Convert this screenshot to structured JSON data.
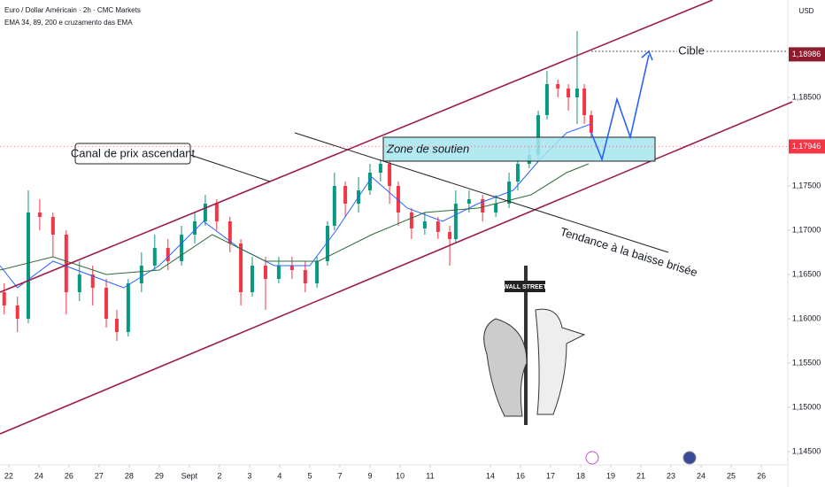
{
  "header": {
    "title": "Euro / Dollar Américain · 2h · CMC Markets",
    "indicator": "EMA 34, 89, 200 e cruzamento das EMA",
    "currency": "USD"
  },
  "chart_data": {
    "type": "candlestick",
    "xlim": [
      -0.29,
      25.88
    ],
    "ylim": [
      1.1435,
      1.196
    ],
    "xticks": [
      {
        "value": 0,
        "label": "22"
      },
      {
        "value": 1,
        "label": "24"
      },
      {
        "value": 2,
        "label": "26"
      },
      {
        "value": 3,
        "label": "27"
      },
      {
        "value": 4,
        "label": "28"
      },
      {
        "value": 5,
        "label": "29"
      },
      {
        "value": 6,
        "label": "Sept"
      },
      {
        "value": 7,
        "label": "2"
      },
      {
        "value": 8,
        "label": "3"
      },
      {
        "value": 9,
        "label": "4"
      },
      {
        "value": 10,
        "label": "5"
      },
      {
        "value": 11,
        "label": "7"
      },
      {
        "value": 12,
        "label": "9"
      },
      {
        "value": 13,
        "label": "10"
      },
      {
        "value": 14,
        "label": "11"
      },
      {
        "value": 16,
        "label": "14"
      },
      {
        "value": 17,
        "label": "16"
      },
      {
        "value": 18,
        "label": "17"
      },
      {
        "value": 19,
        "label": "18"
      },
      {
        "value": 20,
        "label": "19"
      },
      {
        "value": 21,
        "label": "21"
      },
      {
        "value": 22,
        "label": "23"
      },
      {
        "value": 23,
        "label": "24"
      },
      {
        "value": 24,
        "label": "25"
      },
      {
        "value": 25,
        "label": "26"
      }
    ],
    "yticks": [
      {
        "value": 1.145,
        "label": "1,14500"
      },
      {
        "value": 1.15,
        "label": "1,15000"
      },
      {
        "value": 1.155,
        "label": "1,15500"
      },
      {
        "value": 1.16,
        "label": "1,16000"
      },
      {
        "value": 1.165,
        "label": "1,16500"
      },
      {
        "value": 1.17,
        "label": "1,17000"
      },
      {
        "value": 1.175,
        "label": "1,17500"
      },
      {
        "value": 1.185,
        "label": "1,18500"
      }
    ],
    "up_color": "#089981",
    "down_color": "#f23645",
    "candles": {
      "x": [
        -0.15,
        0.29,
        0.65,
        1.03,
        1.47,
        1.91,
        2.35,
        2.79,
        3.24,
        3.59,
        3.97,
        4.41,
        4.85,
        5.29,
        5.74,
        6.18,
        6.53,
        6.91,
        7.35,
        7.71,
        8.09,
        8.53,
        8.97,
        9.41,
        9.85,
        10.24,
        10.59,
        10.82,
        11.18,
        11.62,
        12.0,
        12.35,
        12.65,
        12.94,
        13.38,
        13.82,
        14.26,
        14.65,
        14.85,
        15.29,
        15.74,
        16.18,
        16.62,
        16.91,
        17.29,
        17.59,
        17.88,
        18.24,
        18.59,
        18.88,
        19.12,
        19.35
      ],
      "open": [
        1.163,
        1.1615,
        1.16,
        1.172,
        1.1715,
        1.1695,
        1.163,
        1.165,
        1.1635,
        1.16,
        1.1585,
        1.164,
        1.166,
        1.168,
        1.1665,
        1.1695,
        1.171,
        1.173,
        1.171,
        1.1685,
        1.163,
        1.166,
        1.1645,
        1.166,
        1.1655,
        1.164,
        1.1665,
        1.1705,
        1.175,
        1.173,
        1.1745,
        1.1765,
        1.1775,
        1.175,
        1.172,
        1.1702,
        1.171,
        1.1698,
        1.169,
        1.173,
        1.1735,
        1.172,
        1.173,
        1.1755,
        1.1775,
        1.1785,
        1.183,
        1.1865,
        1.186,
        1.185,
        1.186,
        1.183
      ],
      "high": [
        1.164,
        1.1625,
        1.1745,
        1.1735,
        1.172,
        1.17,
        1.1665,
        1.166,
        1.1645,
        1.161,
        1.1645,
        1.1675,
        1.1695,
        1.169,
        1.1705,
        1.172,
        1.174,
        1.1735,
        1.1715,
        1.169,
        1.167,
        1.167,
        1.167,
        1.167,
        1.1665,
        1.167,
        1.171,
        1.1765,
        1.1755,
        1.176,
        1.1775,
        1.178,
        1.178,
        1.1755,
        1.1725,
        1.172,
        1.1715,
        1.1705,
        1.1745,
        1.1745,
        1.174,
        1.174,
        1.1765,
        1.178,
        1.1795,
        1.1835,
        1.188,
        1.187,
        1.1865,
        1.1925,
        1.1865,
        1.1835
      ],
      "low": [
        1.1605,
        1.1585,
        1.1595,
        1.17,
        1.167,
        1.1605,
        1.162,
        1.1615,
        1.159,
        1.1575,
        1.158,
        1.163,
        1.1655,
        1.1655,
        1.166,
        1.1685,
        1.1705,
        1.17,
        1.1675,
        1.1615,
        1.1625,
        1.161,
        1.164,
        1.1645,
        1.163,
        1.1635,
        1.166,
        1.17,
        1.1715,
        1.172,
        1.174,
        1.1755,
        1.173,
        1.1705,
        1.169,
        1.1695,
        1.169,
        1.166,
        1.1685,
        1.172,
        1.171,
        1.1715,
        1.1725,
        1.1745,
        1.177,
        1.178,
        1.1825,
        1.185,
        1.1835,
        1.182,
        1.182,
        1.1802
      ],
      "close": [
        1.1615,
        1.16,
        1.172,
        1.1715,
        1.1695,
        1.163,
        1.165,
        1.1635,
        1.16,
        1.1585,
        1.164,
        1.166,
        1.168,
        1.1665,
        1.1695,
        1.171,
        1.173,
        1.171,
        1.1685,
        1.163,
        1.166,
        1.1645,
        1.166,
        1.1655,
        1.164,
        1.1665,
        1.1705,
        1.175,
        1.173,
        1.1745,
        1.1765,
        1.1775,
        1.175,
        1.172,
        1.1702,
        1.171,
        1.1698,
        1.169,
        1.173,
        1.1735,
        1.172,
        1.173,
        1.1755,
        1.1775,
        1.1785,
        1.183,
        1.1865,
        1.186,
        1.185,
        1.186,
        1.183,
        1.181
      ]
    },
    "emas": [
      {
        "color": "#2962ff",
        "x": [
          -0.29,
          0.29,
          1.47,
          2.65,
          3.82,
          5,
          6.47,
          7.65,
          8.82,
          10,
          10.88,
          12.06,
          13.24,
          14.41,
          15.59,
          16.76,
          17.65,
          18.53,
          19.35
        ],
        "values": [
          1.166,
          1.1635,
          1.1665,
          1.165,
          1.1635,
          1.166,
          1.171,
          1.168,
          1.166,
          1.166,
          1.17,
          1.176,
          1.1725,
          1.171,
          1.173,
          1.1745,
          1.178,
          1.181,
          1.182
        ]
      },
      {
        "color": "#2e6b3a",
        "x": [
          -0.29,
          1.47,
          3.24,
          5,
          6.76,
          8.53,
          10.29,
          12.06,
          13.82,
          15.59,
          17.35,
          18.53,
          19.26
        ],
        "values": [
          1.1655,
          1.167,
          1.165,
          1.1655,
          1.1695,
          1.1665,
          1.1665,
          1.1695,
          1.172,
          1.1725,
          1.174,
          1.1765,
          1.1775
        ]
      }
    ],
    "price_labels": [
      {
        "value": 1.18986,
        "label": "1,18986",
        "color": "#8e1b2c"
      },
      {
        "value": 1.17946,
        "label": "1,17946",
        "color": "#f23645"
      }
    ],
    "annotations": {
      "channel": "Canal de prix ascendant",
      "support": "Zone de soutien",
      "trend": "Tendance à la baisse brisée",
      "target": "Cible",
      "sign": "WALL STREET"
    }
  }
}
